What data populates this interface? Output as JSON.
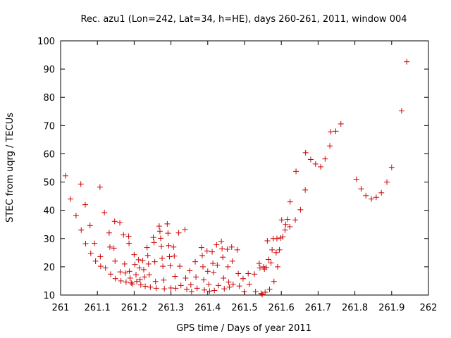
{
  "chart_data": {
    "type": "scatter",
    "title": "Rec. azu1 (Lon=242, Lat=34, h=HE), days 260-261, 2011, window 004",
    "xlabel": "GPS time / Days of year 2011",
    "ylabel": "STEC from uqrg / TECUs",
    "xlim": [
      261,
      262
    ],
    "ylim": [
      10,
      100
    ],
    "x_ticks": [
      "261",
      "261.1",
      "261.2",
      "261.3",
      "261.4",
      "261.5",
      "261.6",
      "261.7",
      "261.8",
      "261.9",
      "262"
    ],
    "y_ticks": [
      "10",
      "20",
      "30",
      "40",
      "50",
      "60",
      "70",
      "80",
      "90",
      "100"
    ],
    "grid": false,
    "marker": "+",
    "color": "#cc0000",
    "series": [
      {
        "points": [
          [
            261.013,
            52.2
          ],
          [
            261.027,
            44.0
          ],
          [
            261.042,
            38.1
          ],
          [
            261.055,
            49.3
          ],
          [
            261.056,
            33.0
          ],
          [
            261.067,
            42.0
          ],
          [
            261.068,
            28.2
          ],
          [
            261.08,
            34.6
          ],
          [
            261.082,
            24.8
          ],
          [
            261.092,
            28.3
          ],
          [
            261.095,
            22.0
          ],
          [
            261.107,
            48.2
          ],
          [
            261.108,
            23.6
          ],
          [
            261.109,
            20.2
          ],
          [
            261.119,
            39.2
          ],
          [
            261.122,
            19.6
          ],
          [
            261.132,
            32.0
          ],
          [
            261.134,
            27.0
          ],
          [
            261.136,
            17.4
          ],
          [
            261.145,
            26.6
          ],
          [
            261.147,
            36.1
          ],
          [
            261.148,
            22.0
          ],
          [
            261.149,
            15.8
          ],
          [
            261.161,
            35.6
          ],
          [
            261.162,
            18.2
          ],
          [
            261.164,
            15.0
          ],
          [
            261.171,
            31.3
          ],
          [
            261.174,
            21.0
          ],
          [
            261.176,
            17.8
          ],
          [
            261.178,
            14.6
          ],
          [
            261.185,
            30.8
          ],
          [
            261.186,
            28.3
          ],
          [
            261.187,
            18.4
          ],
          [
            261.189,
            16.0
          ],
          [
            261.192,
            14.3
          ],
          [
            261.195,
            13.9
          ],
          [
            261.2,
            24.3
          ],
          [
            261.202,
            20.8
          ],
          [
            261.205,
            17.2
          ],
          [
            261.207,
            14.8
          ],
          [
            261.212,
            22.5
          ],
          [
            261.214,
            19.6
          ],
          [
            261.216,
            15.5
          ],
          [
            261.218,
            13.6
          ],
          [
            261.223,
            22.2
          ],
          [
            261.226,
            19.0
          ],
          [
            261.228,
            16.4
          ],
          [
            261.23,
            13.1
          ],
          [
            261.235,
            26.8
          ],
          [
            261.237,
            24.0
          ],
          [
            261.239,
            21.0
          ],
          [
            261.241,
            17.2
          ],
          [
            261.244,
            12.8
          ],
          [
            261.252,
            30.4
          ],
          [
            261.254,
            28.6
          ],
          [
            261.256,
            21.8
          ],
          [
            261.258,
            14.8
          ],
          [
            261.26,
            12.4
          ],
          [
            261.268,
            34.4
          ],
          [
            261.27,
            32.6
          ],
          [
            261.272,
            30.1
          ],
          [
            261.274,
            27.2
          ],
          [
            261.276,
            23.0
          ],
          [
            261.278,
            20.2
          ],
          [
            261.28,
            15.3
          ],
          [
            261.282,
            12.2
          ],
          [
            261.29,
            35.2
          ],
          [
            261.292,
            31.9
          ],
          [
            261.294,
            27.5
          ],
          [
            261.296,
            23.6
          ],
          [
            261.298,
            20.4
          ],
          [
            261.3,
            12.5
          ],
          [
            261.307,
            27.0
          ],
          [
            261.309,
            23.8
          ],
          [
            261.311,
            16.6
          ],
          [
            261.313,
            12.4
          ],
          [
            261.321,
            32.0
          ],
          [
            261.324,
            20.2
          ],
          [
            261.327,
            13.4
          ],
          [
            261.338,
            33.2
          ],
          [
            261.34,
            16.0
          ],
          [
            261.343,
            12.0
          ],
          [
            261.351,
            18.6
          ],
          [
            261.354,
            13.6
          ],
          [
            261.356,
            11.2
          ],
          [
            261.366,
            21.8
          ],
          [
            261.368,
            16.4
          ],
          [
            261.371,
            12.4
          ],
          [
            261.383,
            26.8
          ],
          [
            261.385,
            24.0
          ],
          [
            261.387,
            20.0
          ],
          [
            261.389,
            15.4
          ],
          [
            261.391,
            11.8
          ],
          [
            261.398,
            25.6
          ],
          [
            261.4,
            18.4
          ],
          [
            261.403,
            13.8
          ],
          [
            261.405,
            11.4
          ],
          [
            261.412,
            25.3
          ],
          [
            261.414,
            21.2
          ],
          [
            261.416,
            18.0
          ],
          [
            261.418,
            11.6
          ],
          [
            261.424,
            27.8
          ],
          [
            261.426,
            20.6
          ],
          [
            261.429,
            13.4
          ],
          [
            261.437,
            29.0
          ],
          [
            261.439,
            26.4
          ],
          [
            261.441,
            23.4
          ],
          [
            261.443,
            16.0
          ],
          [
            261.445,
            12.2
          ],
          [
            261.453,
            26.2
          ],
          [
            261.455,
            20.0
          ],
          [
            261.457,
            14.6
          ],
          [
            261.459,
            12.8
          ],
          [
            261.465,
            27.0
          ],
          [
            261.467,
            22.0
          ],
          [
            261.469,
            13.8
          ],
          [
            261.48,
            26.0
          ],
          [
            261.483,
            17.6
          ],
          [
            261.486,
            13.2
          ],
          [
            261.496,
            15.8
          ],
          [
            261.499,
            11.2
          ],
          [
            261.51,
            17.6
          ],
          [
            261.513,
            13.8
          ],
          [
            261.527,
            17.4
          ],
          [
            261.53,
            11.2
          ],
          [
            261.54,
            21.2
          ],
          [
            261.542,
            19.6
          ],
          [
            261.545,
            10.6
          ],
          [
            261.548,
            10.2
          ],
          [
            261.552,
            20.0
          ],
          [
            261.554,
            19.2
          ],
          [
            261.556,
            11.0
          ],
          [
            261.559,
            19.8
          ],
          [
            261.562,
            29.2
          ],
          [
            261.565,
            22.6
          ],
          [
            261.568,
            12.0
          ],
          [
            261.572,
            21.4
          ],
          [
            261.575,
            26.0
          ],
          [
            261.578,
            30.0
          ],
          [
            261.58,
            14.8
          ],
          [
            261.586,
            25.0
          ],
          [
            261.588,
            30.0
          ],
          [
            261.59,
            20.0
          ],
          [
            261.595,
            26.0
          ],
          [
            261.598,
            30.2
          ],
          [
            261.601,
            36.6
          ],
          [
            261.604,
            30.6
          ],
          [
            261.61,
            33.0
          ],
          [
            261.612,
            35.0
          ],
          [
            261.617,
            36.8
          ],
          [
            261.623,
            34.2
          ],
          [
            261.624,
            43.0
          ],
          [
            261.638,
            36.6
          ],
          [
            261.64,
            53.8
          ],
          [
            261.652,
            40.2
          ],
          [
            261.665,
            47.2
          ],
          [
            261.666,
            60.4
          ],
          [
            261.68,
            58.0
          ],
          [
            261.693,
            56.4
          ],
          [
            261.707,
            55.4
          ],
          [
            261.719,
            58.2
          ],
          [
            261.732,
            62.8
          ],
          [
            261.734,
            67.8
          ],
          [
            261.748,
            68.0
          ],
          [
            261.762,
            70.6
          ],
          [
            261.804,
            51.0
          ],
          [
            261.817,
            47.6
          ],
          [
            261.83,
            45.2
          ],
          [
            261.845,
            44.0
          ],
          [
            261.858,
            44.6
          ],
          [
            261.872,
            46.2
          ],
          [
            261.887,
            50.0
          ],
          [
            261.9,
            55.2
          ],
          [
            261.927,
            75.2
          ],
          [
            261.941,
            92.6
          ]
        ]
      }
    ]
  }
}
